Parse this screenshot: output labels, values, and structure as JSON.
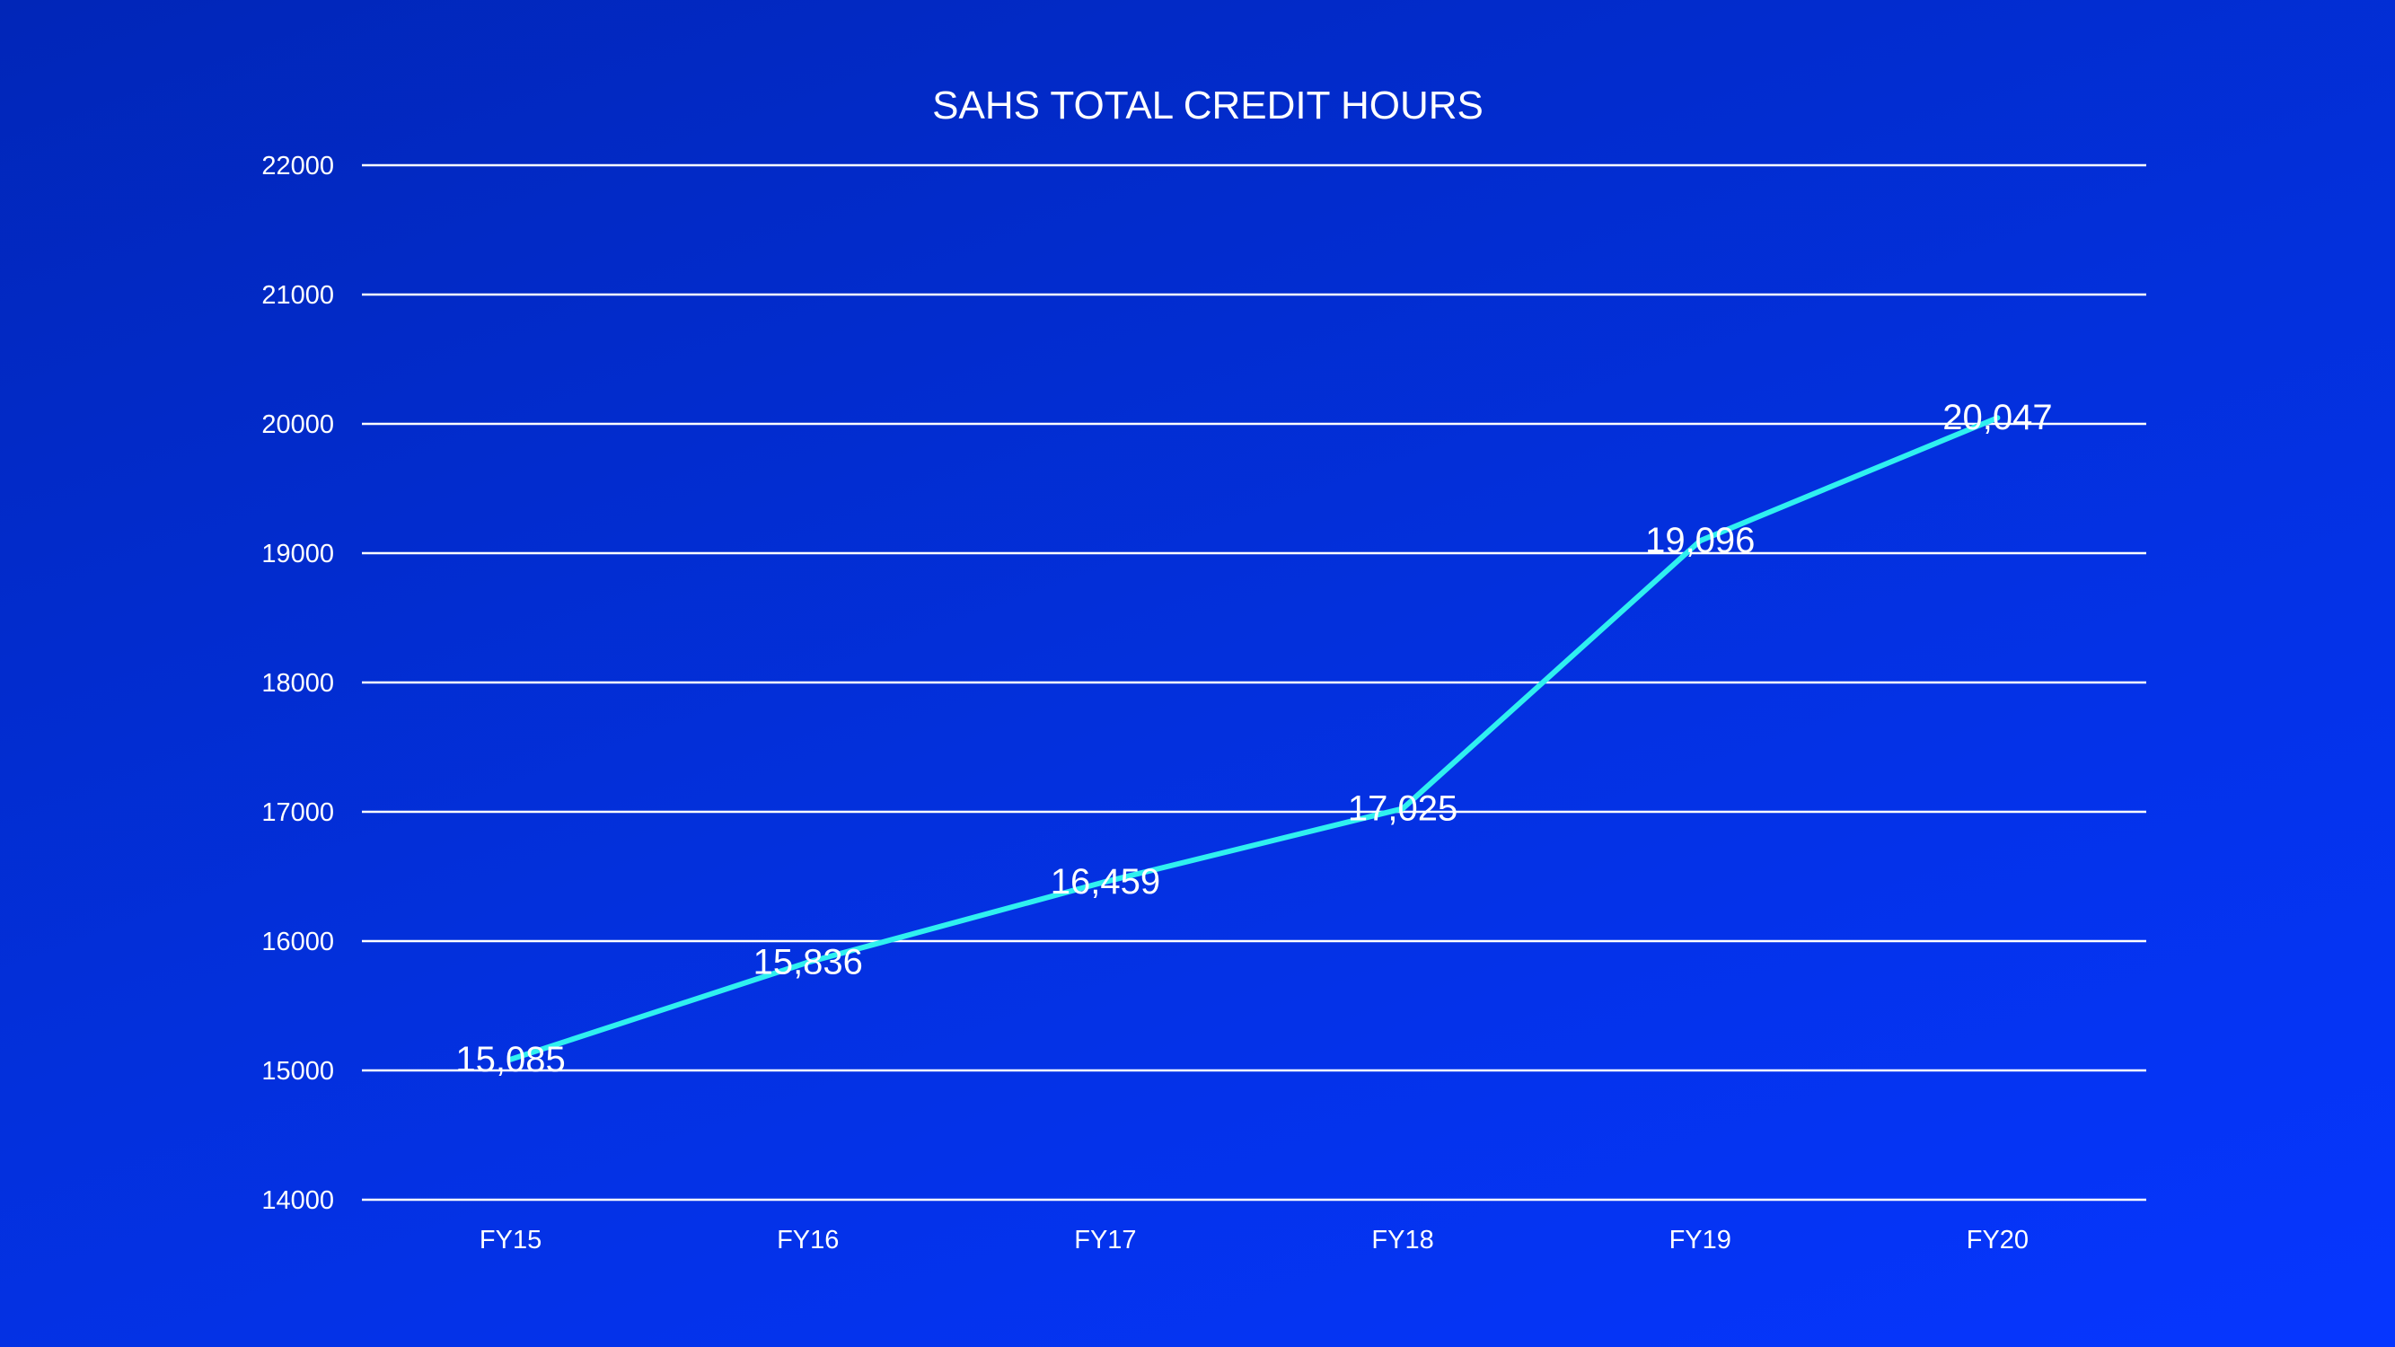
{
  "chart_data": {
    "type": "line",
    "title": "SAHS TOTAL CREDIT HOURS",
    "xlabel": "",
    "ylabel": "",
    "categories": [
      "FY15",
      "FY16",
      "FY17",
      "FY18",
      "FY19",
      "FY20"
    ],
    "series": [
      {
        "values": [
          15085,
          15836,
          16459,
          17025,
          19096,
          20047
        ],
        "data_labels": [
          "15,085",
          "15,836",
          "16,459",
          "17,025",
          "19,096",
          "20,047"
        ]
      }
    ],
    "ylim": [
      14000,
      22000
    ],
    "yticks": [
      "14000",
      "15000",
      "16000",
      "17000",
      "18000",
      "19000",
      "20000",
      "21000",
      "22000"
    ],
    "grid": "horizontal",
    "legend": "none",
    "colors": {
      "line": "#2ff0f0",
      "background_start": "#0126b8",
      "background_end": "#0636ff",
      "text": "#ffffff",
      "grid": "#ffffff"
    }
  }
}
